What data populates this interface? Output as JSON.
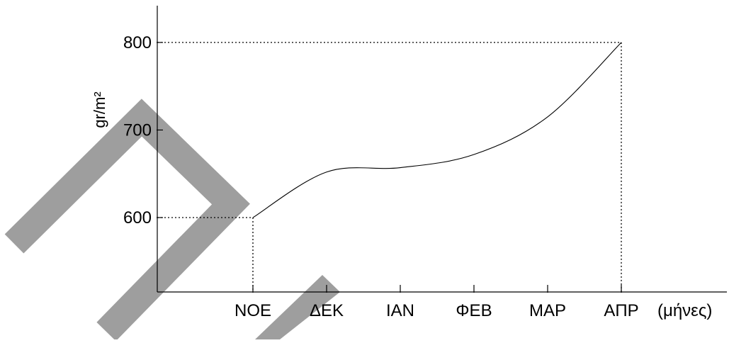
{
  "chart_data": {
    "type": "line",
    "title": "",
    "xlabel": "(μήνες)",
    "ylabel": "gr/m²",
    "categories": [
      "ΝΟΕ",
      "ΔΕΚ",
      "ΙΑΝ",
      "ΦΕΒ",
      "ΜΑΡ",
      "ΑΠΡ"
    ],
    "yticks": [
      "600",
      "700",
      "800"
    ],
    "ylim": [
      515,
      842
    ],
    "grid": false,
    "series": [
      {
        "values": [
          600,
          652,
          657,
          672,
          715,
          800
        ]
      }
    ],
    "guides": {
      "start_value": 600,
      "end_value": 800
    },
    "colors": {
      "line": "#000000",
      "watermark": "#9e9e9e"
    }
  }
}
